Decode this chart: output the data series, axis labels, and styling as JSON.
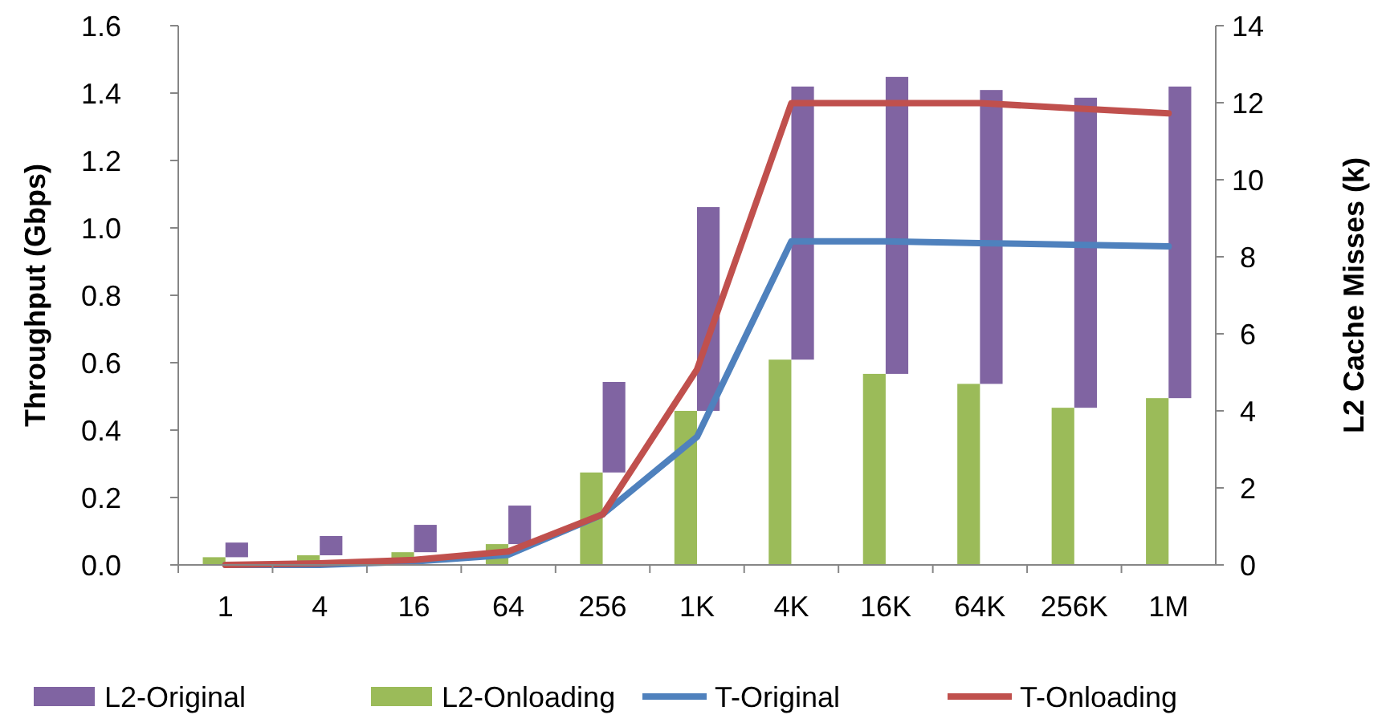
{
  "chart_data": {
    "type": "bar",
    "stacked": true,
    "categories": [
      "1",
      "4",
      "16",
      "64",
      "256",
      "1K",
      "4K",
      "16K",
      "64K",
      "256K",
      "1M"
    ],
    "ylabel": "Throughput (Gbps)",
    "y2label": "L2 Cache Misses (k)",
    "ylim": [
      0,
      1.6
    ],
    "yticks": [
      {
        "value": 0,
        "label": "0.0"
      },
      {
        "value": 0.2,
        "label": "0.2"
      },
      {
        "value": 0.4,
        "label": "0.4"
      },
      {
        "value": 0.6,
        "label": "0.6"
      },
      {
        "value": 0.8,
        "label": "0.8"
      },
      {
        "value": 1,
        "label": "1.0"
      },
      {
        "value": 1.2,
        "label": "1.2"
      },
      {
        "value": 1.4,
        "label": "1.4"
      },
      {
        "value": 1.6,
        "label": "1.6"
      }
    ],
    "y2lim": [
      0,
      14
    ],
    "y2ticks": [
      0,
      2,
      4,
      6,
      8,
      10,
      12,
      14
    ],
    "legend": "bottom",
    "grid": false,
    "series": [
      {
        "name": "L2-Onloading",
        "color": "#9bbb59",
        "axis": "y2",
        "values": [
          0.2,
          0.25,
          0.33,
          0.54,
          2.4,
          4.0,
          5.33,
          4.96,
          4.7,
          4.08,
          4.33
        ]
      },
      {
        "name": "L2-Original",
        "color": "#8064a2",
        "axis": "y2",
        "values": [
          0.38,
          0.5,
          0.71,
          1.0,
          2.35,
          5.29,
          7.09,
          7.71,
          7.63,
          8.05,
          8.09
        ]
      },
      {
        "name": "T-Original",
        "type": "line",
        "color": "#4f81bd",
        "values": [
          0.0,
          0.0,
          0.01,
          0.03,
          0.15,
          0.38,
          0.96,
          0.96,
          0.955,
          0.95,
          0.945
        ]
      },
      {
        "name": "T-Onloading",
        "type": "line",
        "color": "#c0504d",
        "values": [
          0.0,
          0.005,
          0.015,
          0.04,
          0.15,
          0.58,
          1.37,
          1.37,
          1.37,
          1.355,
          1.34
        ]
      }
    ]
  }
}
